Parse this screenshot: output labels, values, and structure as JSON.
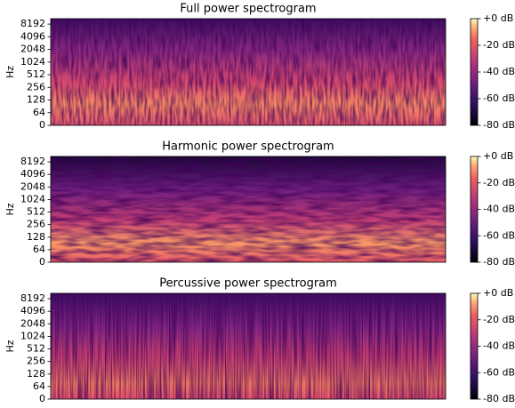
{
  "chart_data": [
    {
      "type": "spectrogram",
      "title": "Full power spectrogram",
      "ylabel": "Hz",
      "yscale": "symlog",
      "ylim": [
        0,
        11025
      ],
      "yticks": [
        0,
        64,
        128,
        256,
        512,
        1024,
        2048,
        4096,
        8192
      ],
      "colormap": "magma",
      "clim": [
        -80,
        0
      ],
      "cticks": [
        {
          "value": 0,
          "label": "+0 dB"
        },
        {
          "value": -20,
          "label": "-20 dB"
        },
        {
          "value": -40,
          "label": "-40 dB"
        },
        {
          "value": -60,
          "label": "-60 dB"
        },
        {
          "value": -80,
          "label": "-80 dB"
        }
      ]
    },
    {
      "type": "spectrogram",
      "title": "Harmonic power spectrogram",
      "ylabel": "Hz",
      "yscale": "symlog",
      "ylim": [
        0,
        11025
      ],
      "yticks": [
        0,
        64,
        128,
        256,
        512,
        1024,
        2048,
        4096,
        8192
      ],
      "colormap": "magma",
      "clim": [
        -80,
        0
      ],
      "cticks": [
        {
          "value": 0,
          "label": "+0 dB"
        },
        {
          "value": -20,
          "label": "-20 dB"
        },
        {
          "value": -40,
          "label": "-40 dB"
        },
        {
          "value": -60,
          "label": "-60 dB"
        },
        {
          "value": -80,
          "label": "-80 dB"
        }
      ]
    },
    {
      "type": "spectrogram",
      "title": "Percussive power spectrogram",
      "ylabel": "Hz",
      "yscale": "symlog",
      "ylim": [
        0,
        11025
      ],
      "yticks": [
        0,
        64,
        128,
        256,
        512,
        1024,
        2048,
        4096,
        8192
      ],
      "colormap": "magma",
      "clim": [
        -80,
        0
      ],
      "cticks": [
        {
          "value": 0,
          "label": "+0 dB"
        },
        {
          "value": -20,
          "label": "-20 dB"
        },
        {
          "value": -40,
          "label": "-40 dB"
        },
        {
          "value": -60,
          "label": "-60 dB"
        },
        {
          "value": -80,
          "label": "-80 dB"
        }
      ]
    }
  ]
}
